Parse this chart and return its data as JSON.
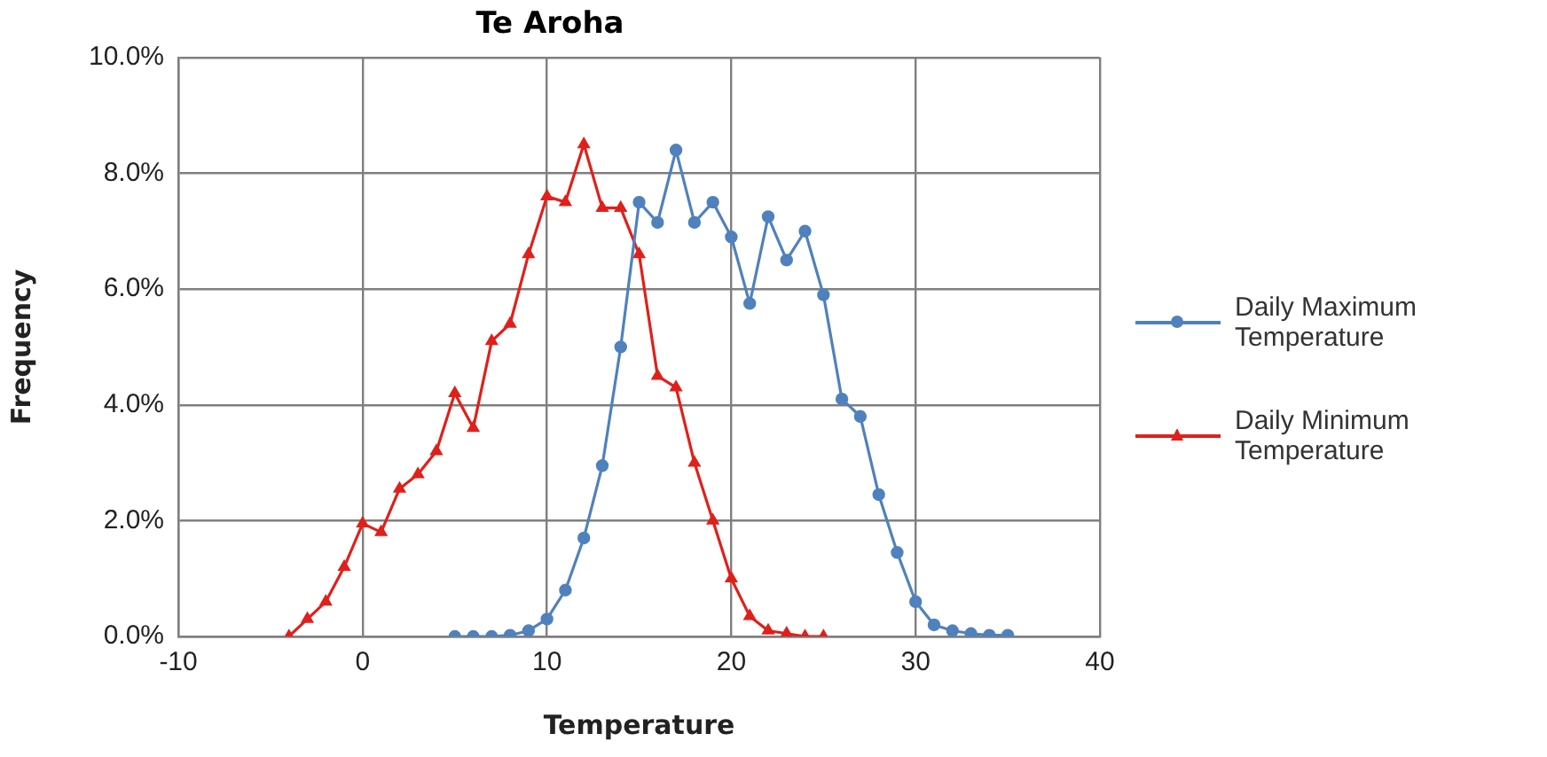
{
  "chart_data": {
    "type": "line",
    "title": "Te Aroha",
    "xlabel": "Temperature",
    "ylabel": "Frequency",
    "xlim": [
      -10,
      40
    ],
    "xticks": [
      -10,
      0,
      10,
      20,
      30,
      40
    ],
    "ylim": [
      0,
      10
    ],
    "yticks": [
      {
        "value": 0,
        "label": "0.0%"
      },
      {
        "value": 2,
        "label": "2.0%"
      },
      {
        "value": 4,
        "label": "4.0%"
      },
      {
        "value": 6,
        "label": "6.0%"
      },
      {
        "value": 8,
        "label": "8.0%"
      },
      {
        "value": 10,
        "label": "10.0%"
      }
    ],
    "grid": true,
    "legend": "right",
    "line_style": "solid",
    "series": [
      {
        "name": "Daily Maximum Temperature",
        "color": "#4f81bd",
        "marker": "circle",
        "x": [
          5,
          6,
          7,
          8,
          9,
          10,
          11,
          12,
          13,
          14,
          15,
          16,
          17,
          18,
          19,
          20,
          21,
          22,
          23,
          24,
          25,
          26,
          27,
          28,
          29,
          30,
          31,
          32,
          33,
          34,
          35
        ],
        "values": [
          0,
          0,
          0,
          0.02,
          0.1,
          0.3,
          0.8,
          1.7,
          2.95,
          5.0,
          7.5,
          7.15,
          8.4,
          7.15,
          7.5,
          6.9,
          5.75,
          7.25,
          6.5,
          7.0,
          5.9,
          4.1,
          3.8,
          2.45,
          1.45,
          0.6,
          0.2,
          0.1,
          0.05,
          0.02,
          0.02
        ]
      },
      {
        "name": "Daily Minimum Temperature",
        "color": "#e0201b",
        "marker": "triangle",
        "x": [
          -4,
          -3,
          -2,
          -1,
          0,
          1,
          2,
          3,
          4,
          5,
          6,
          7,
          8,
          9,
          10,
          11,
          12,
          13,
          14,
          15,
          16,
          17,
          18,
          19,
          20,
          21,
          22,
          23,
          24,
          25
        ],
        "values": [
          0,
          0.3,
          0.6,
          1.2,
          1.95,
          1.8,
          2.55,
          2.8,
          3.2,
          4.2,
          3.6,
          5.1,
          5.4,
          6.6,
          7.6,
          7.5,
          8.5,
          7.4,
          7.4,
          6.6,
          4.5,
          4.3,
          3.0,
          2.0,
          1.0,
          0.35,
          0.1,
          0.05,
          0,
          0
        ]
      }
    ]
  }
}
